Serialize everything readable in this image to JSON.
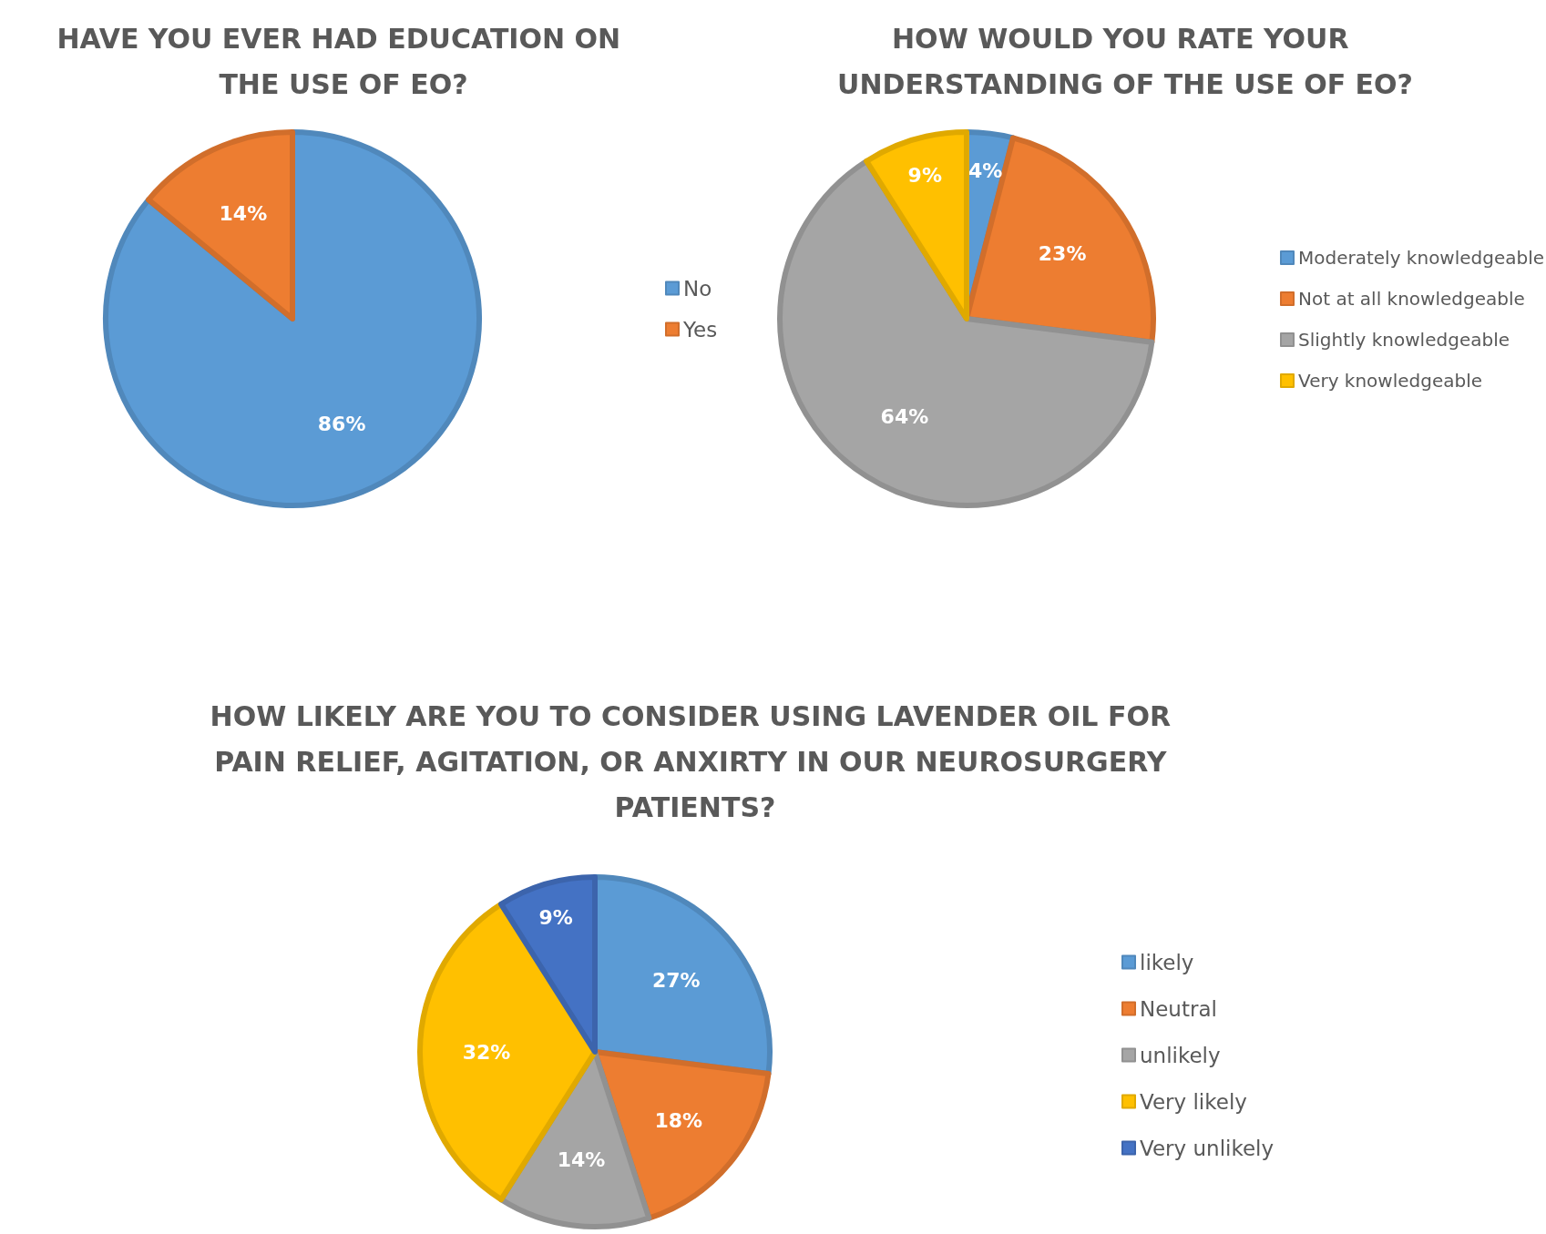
{
  "chart_data": [
    {
      "type": "pie",
      "title": "HAVE YOU EVER HAD EDUCATION ON THE USE OF EO?",
      "categories": [
        "No",
        "Yes"
      ],
      "values": [
        86,
        14
      ],
      "colors": [
        "#5b9bd5",
        "#ed7d31"
      ],
      "value_labels": [
        "86%",
        "14%"
      ],
      "legend": "right"
    },
    {
      "type": "pie",
      "title": "HOW WOULD YOU RATE YOUR UNDERSTANDING OF THE USE OF EO?",
      "categories": [
        "Moderately knowledgeable",
        "Not at all knowledgeable",
        "Slightly knowledgeable",
        "Very knowledgeable"
      ],
      "values": [
        4,
        23,
        64,
        9
      ],
      "colors": [
        "#5b9bd5",
        "#ed7d31",
        "#a5a5a5",
        "#ffc000"
      ],
      "value_labels": [
        "4%",
        "23%",
        "64%",
        "9%"
      ],
      "legend": "right"
    },
    {
      "type": "pie",
      "title": "HOW LIKELY ARE YOU TO CONSIDER USING LAVENDER OIL FOR PAIN RELIEF, AGITATION, OR ANXIRTY IN OUR NEUROSURGERY PATIENTS?",
      "categories": [
        "likely",
        "Neutral",
        "unlikely",
        "Very likely",
        "Very unlikely"
      ],
      "values": [
        27,
        18,
        14,
        32,
        9
      ],
      "colors": [
        "#5b9bd5",
        "#ed7d31",
        "#a5a5a5",
        "#ffc000",
        "#4472c4"
      ],
      "value_labels": [
        "27%",
        "18%",
        "14%",
        "32%",
        "9%"
      ],
      "legend": "right"
    }
  ]
}
